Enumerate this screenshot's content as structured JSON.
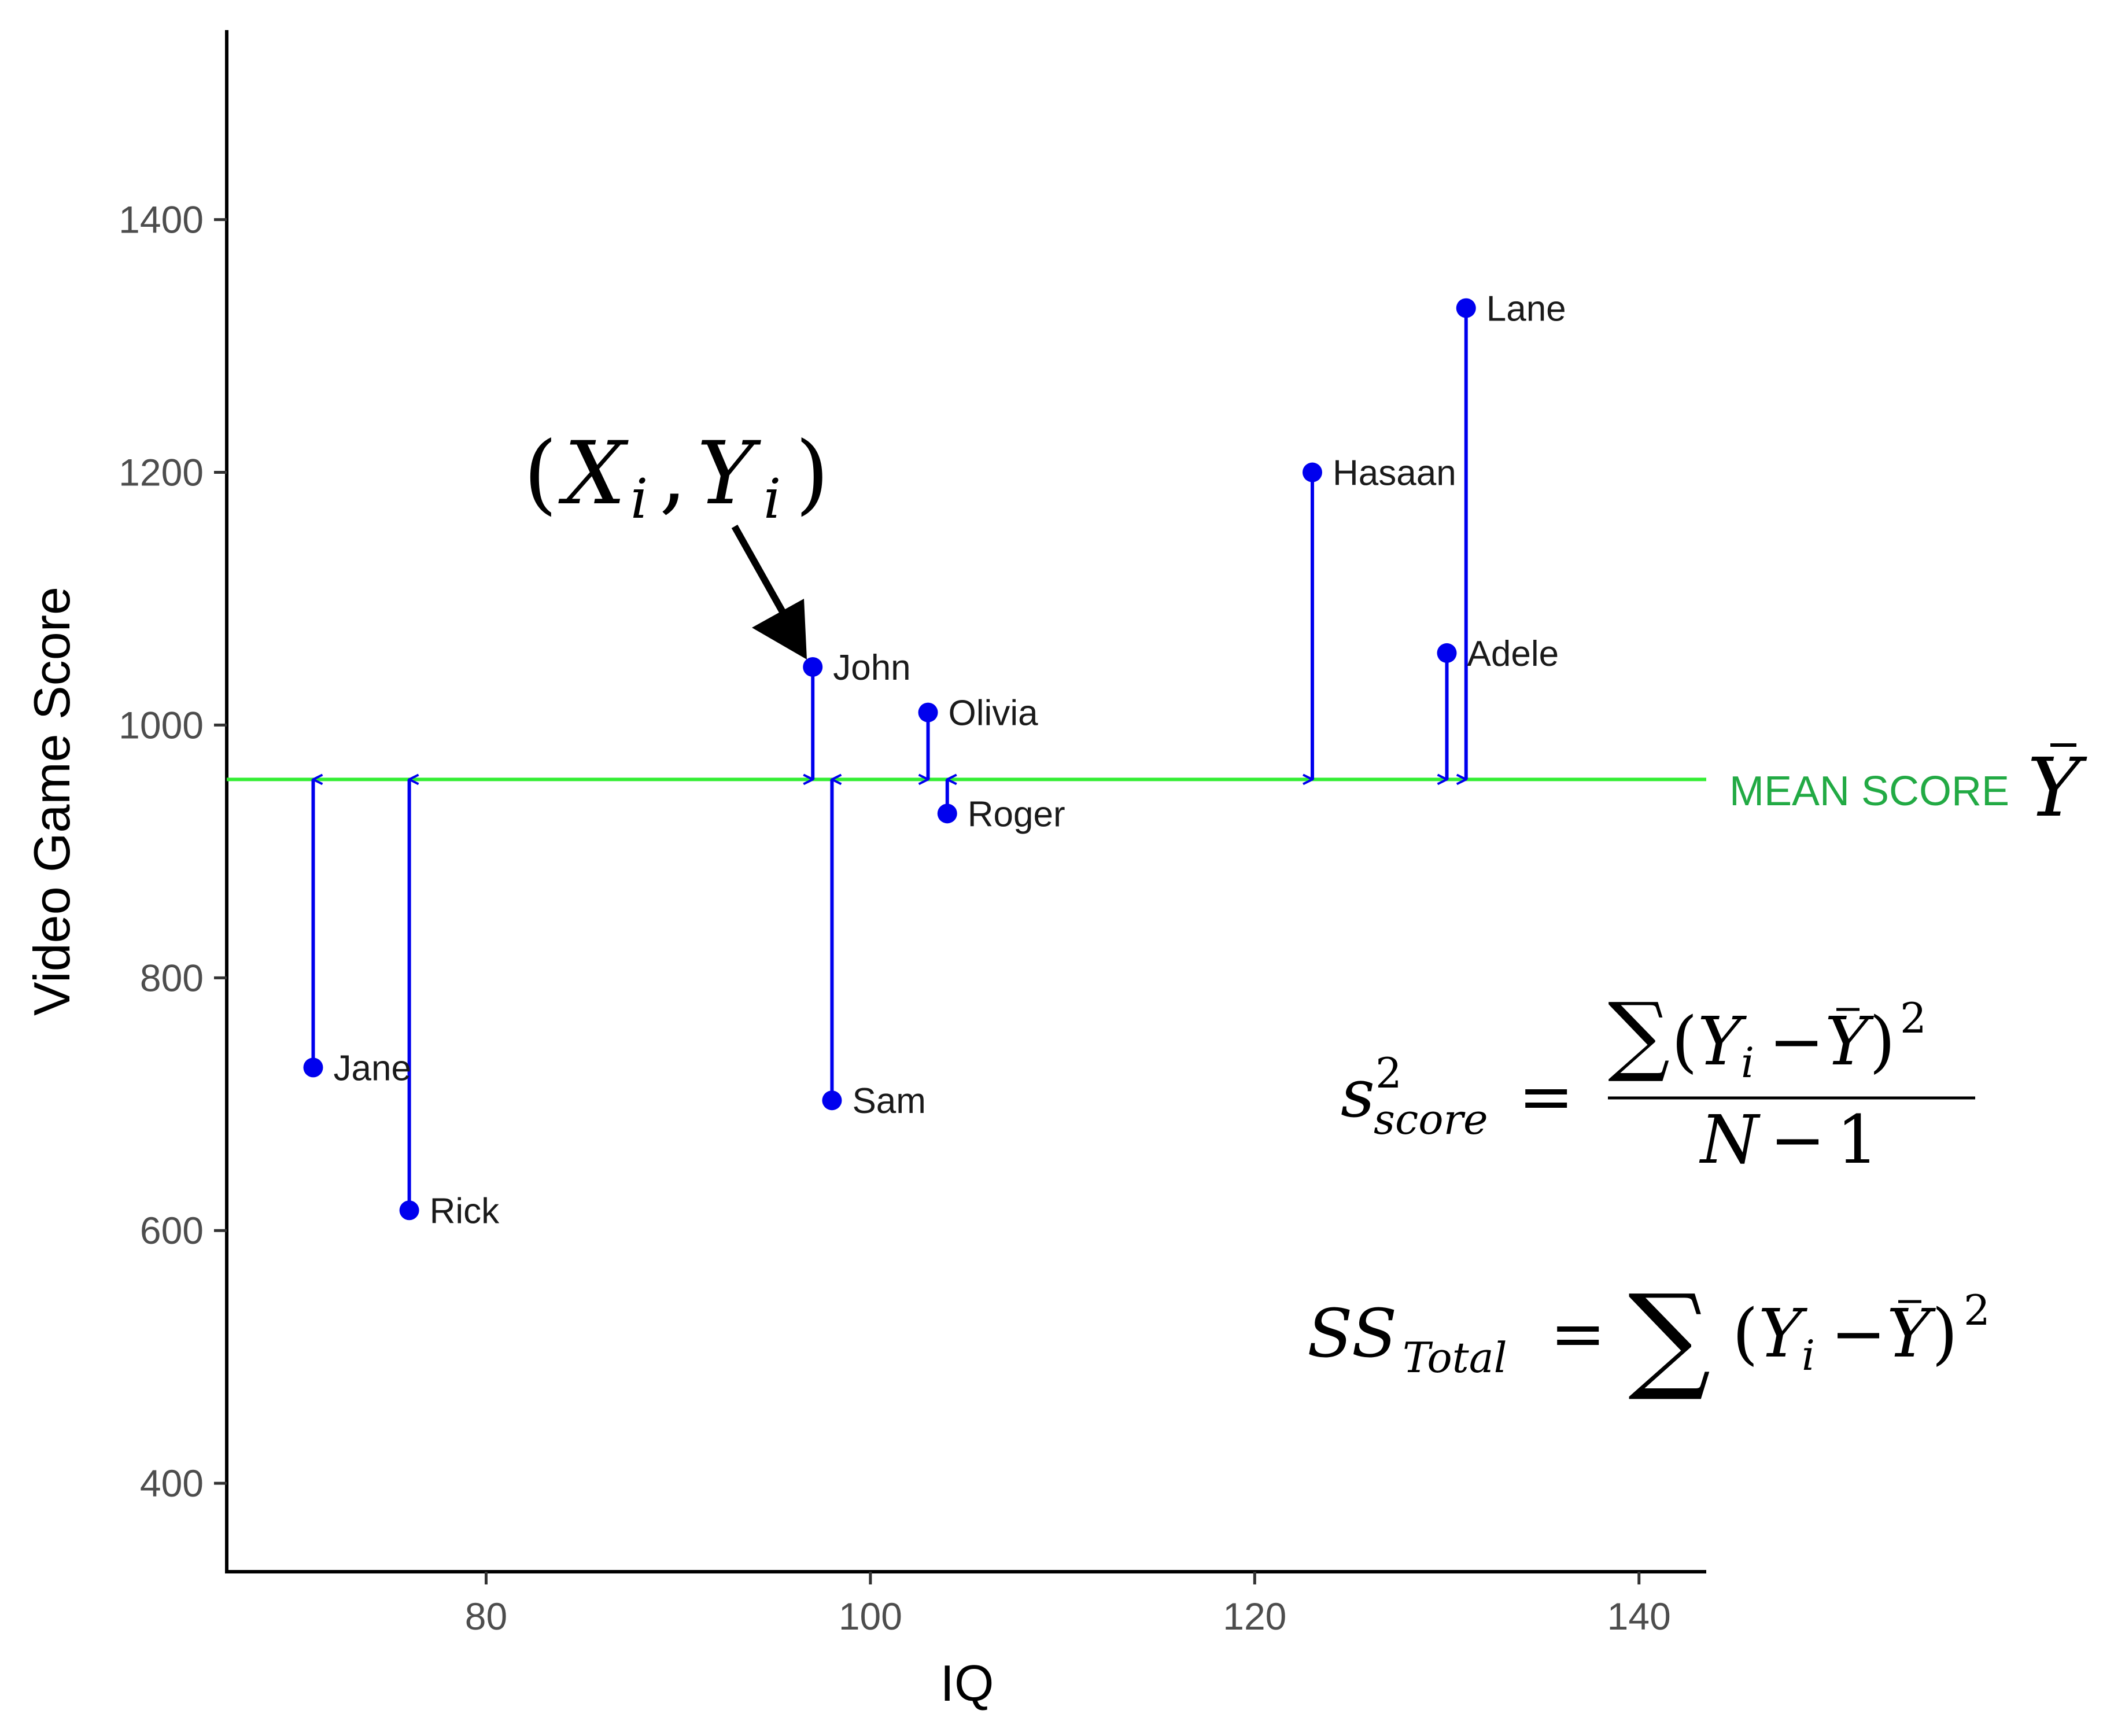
{
  "chart_data": {
    "type": "scatter",
    "xlabel": "IQ",
    "ylabel": "Video Game Score",
    "xlim": [
      66.5,
      143.5
    ],
    "ylim": [
      330,
      1550
    ],
    "x_ticks": [
      80,
      100,
      120,
      140
    ],
    "y_ticks": [
      400,
      600,
      800,
      1000,
      1200,
      1400
    ],
    "grid": false,
    "mean": 957,
    "mean_label": "MEAN SCORE",
    "points": [
      {
        "name": "Jane",
        "x": 71,
        "y": 729
      },
      {
        "name": "Rick",
        "x": 76,
        "y": 616
      },
      {
        "name": "John",
        "x": 97,
        "y": 1046
      },
      {
        "name": "Sam",
        "x": 98,
        "y": 703
      },
      {
        "name": "Olivia",
        "x": 103,
        "y": 1010
      },
      {
        "name": "Roger",
        "x": 104,
        "y": 930
      },
      {
        "name": "Hasaan",
        "x": 123,
        "y": 1200
      },
      {
        "name": "Adele",
        "x": 130,
        "y": 1057
      },
      {
        "name": "Lane",
        "x": 131,
        "y": 1330
      }
    ],
    "colors": {
      "points": "#0000ee",
      "mean_line": "#33ee33",
      "mean_label": "#22aa44",
      "axis": "#000000"
    },
    "annotations": {
      "point_formula": "(Xᵢ, Yᵢ)",
      "variance_formula": "s²_score = ∑(Yᵢ − Ȳ)² / (N − 1)",
      "ss_formula": "SS_Total = ∑(Yᵢ − Ȳ)²"
    }
  }
}
